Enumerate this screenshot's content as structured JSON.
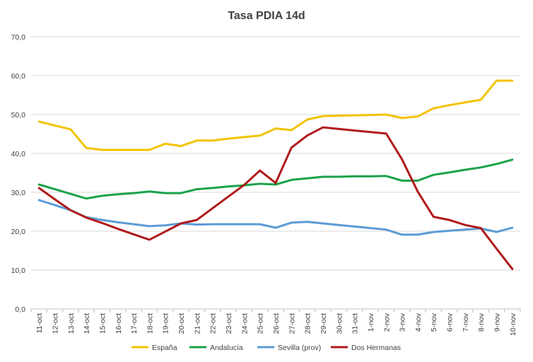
{
  "chart_data": {
    "type": "line",
    "title": "Tasa PDIA 14d",
    "xlabel": "",
    "ylabel": "",
    "ylim": [
      0,
      70
    ],
    "yticks": [
      "0,0",
      "10,0",
      "20,0",
      "30,0",
      "40,0",
      "50,0",
      "60,0",
      "70,0"
    ],
    "grid": true,
    "legend_position": "bottom",
    "categories": [
      "11-oct",
      "12-oct",
      "13-oct",
      "14-oct",
      "15-oct",
      "16-oct",
      "17-oct",
      "18-oct",
      "19-oct",
      "20-oct",
      "21-oct",
      "22-oct",
      "23-oct",
      "24-oct",
      "25-oct",
      "26-oct",
      "27-oct",
      "28-oct",
      "29-oct",
      "30-oct",
      "31-oct",
      "1-nov",
      "2-nov",
      "3-nov",
      "4-nov",
      "5-nov",
      "6-nov",
      "7-nov",
      "8-nov",
      "9-nov",
      "10-nov"
    ],
    "series": [
      {
        "name": "España",
        "color": "#f2c300",
        "values": [
          48.2,
          47.2,
          46.2,
          41.4,
          40.9,
          40.9,
          40.9,
          40.9,
          42.5,
          41.9,
          43.3,
          43.3,
          43.8,
          44.2,
          44.6,
          46.4,
          46.0,
          48.7,
          49.6,
          49.7,
          49.8,
          49.9,
          50.0,
          49.1,
          49.5,
          51.6,
          52.4,
          53.1,
          53.8,
          58.7,
          58.7
        ]
      },
      {
        "name": "Andalucía",
        "color": "#1aa34a",
        "values": [
          32.0,
          30.8,
          29.6,
          28.4,
          29.1,
          29.5,
          29.8,
          30.2,
          29.8,
          29.8,
          30.8,
          31.1,
          31.5,
          31.8,
          32.2,
          32.0,
          33.2,
          33.6,
          34.0,
          34.0,
          34.1,
          34.1,
          34.2,
          33.0,
          33.0,
          34.5,
          35.1,
          35.8,
          36.4,
          37.3,
          38.4
        ]
      },
      {
        "name": "Sevilla (prov)",
        "color": "#5b9bd5",
        "values": [
          28.0,
          26.7,
          25.4,
          23.6,
          22.9,
          22.3,
          21.8,
          21.3,
          21.5,
          22.0,
          21.7,
          21.8,
          21.8,
          21.8,
          21.8,
          20.9,
          22.2,
          22.4,
          22.0,
          21.6,
          21.2,
          20.8,
          20.4,
          19.1,
          19.1,
          19.8,
          20.1,
          20.4,
          20.7,
          19.8,
          20.9
        ]
      },
      {
        "name": "Dos Hermanas",
        "color": "#b01a1a",
        "values": [
          31.1,
          28.2,
          25.4,
          23.5,
          22.1,
          20.6,
          19.2,
          17.8,
          19.9,
          22.0,
          22.9,
          25.9,
          28.9,
          31.9,
          35.6,
          32.4,
          41.5,
          44.6,
          46.7,
          46.3,
          45.9,
          45.5,
          45.1,
          38.5,
          30.2,
          23.7,
          22.9,
          21.6,
          20.8,
          15.5,
          10.3
        ]
      }
    ]
  }
}
